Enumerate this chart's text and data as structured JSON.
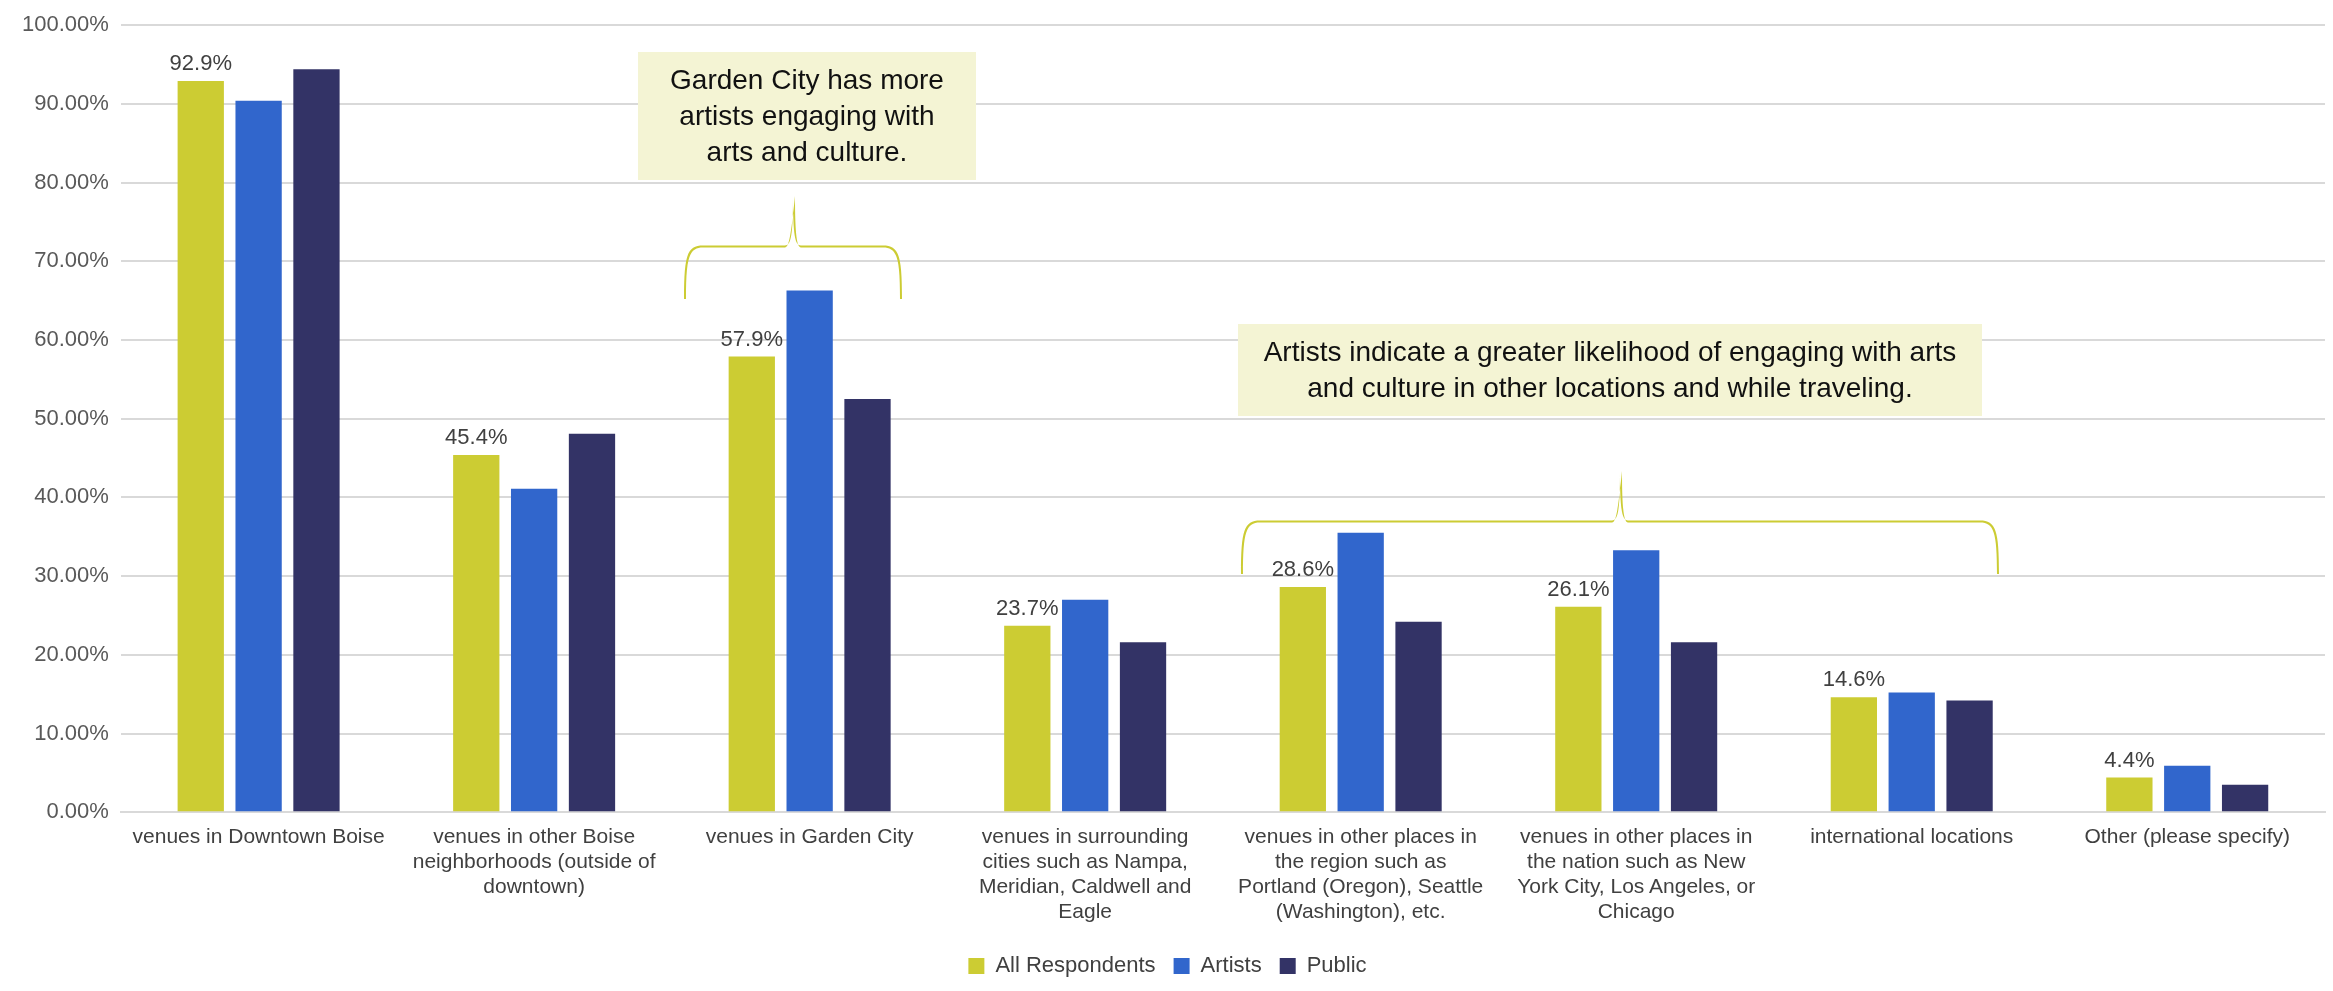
{
  "chart_data": {
    "type": "bar",
    "categories": [
      "venues in Downtown Boise",
      "venues in other Boise neighborhoods (outside of downtown)",
      "venues in Garden City",
      "venues in surrounding cities such as Nampa, Meridian, Caldwell and Eagle",
      "venues in other places in the region such as Portland (Oregon), Seattle (Washington), etc.",
      "venues in other places in the nation such as New York City, Los Angeles, or Chicago",
      "international locations",
      "Other (please specify)"
    ],
    "series": [
      {
        "name": "All Respondents",
        "color": "#cccc33",
        "values": [
          92.9,
          45.4,
          57.9,
          23.7,
          28.6,
          26.1,
          14.6,
          4.4
        ],
        "value_labels": [
          "92.9%",
          "45.4%",
          "57.9%",
          "23.7%",
          "28.6%",
          "26.1%",
          "14.6%",
          "4.4%"
        ]
      },
      {
        "name": "Artists",
        "color": "#3166cc",
        "values": [
          90.4,
          41.1,
          66.3,
          27.0,
          35.5,
          33.3,
          15.2,
          5.9
        ]
      },
      {
        "name": "Public",
        "color": "#333366",
        "values": [
          94.4,
          48.1,
          52.5,
          21.6,
          24.2,
          21.6,
          14.2,
          3.5
        ]
      }
    ],
    "ylim": [
      0,
      100
    ],
    "yticks": [
      {
        "value": 0,
        "label": "0.00%"
      },
      {
        "value": 10,
        "label": "10.00%"
      },
      {
        "value": 20,
        "label": "20.00%"
      },
      {
        "value": 30,
        "label": "30.00%"
      },
      {
        "value": 40,
        "label": "40.00%"
      },
      {
        "value": 50,
        "label": "50.00%"
      },
      {
        "value": 60,
        "label": "60.00%"
      },
      {
        "value": 70,
        "label": "70.00%"
      },
      {
        "value": 80,
        "label": "80.00%"
      },
      {
        "value": 90,
        "label": "90.00%"
      },
      {
        "value": 100,
        "label": "100.00%"
      }
    ],
    "grid": "y",
    "legend": "bottom",
    "annotations": [
      "Garden City has more artists engaging with arts and culture.",
      "Artists indicate a greater likelihood of engaging with arts and culture in other locations and while traveling."
    ]
  }
}
